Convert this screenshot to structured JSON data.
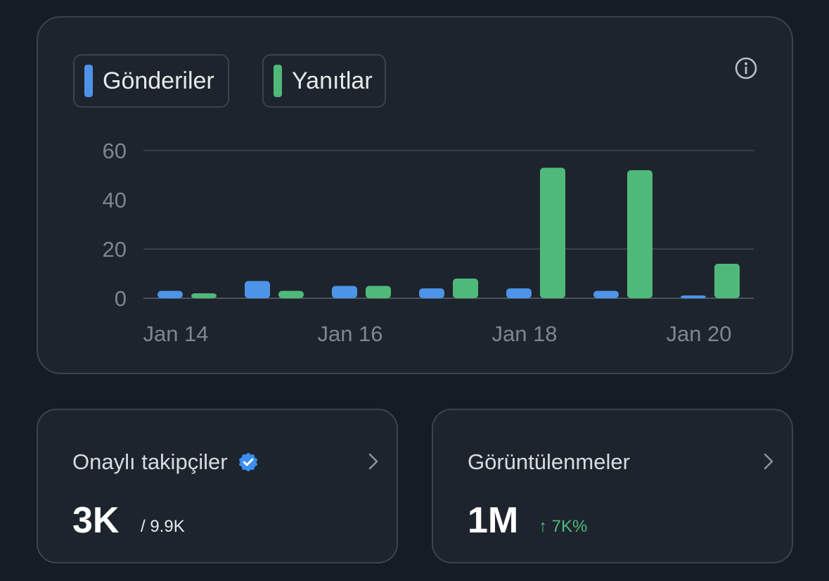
{
  "legend": {
    "posts": {
      "label": "Gönderiler",
      "color": "#4d94e8"
    },
    "replies": {
      "label": "Yanıtlar",
      "color": "#4fb97a"
    }
  },
  "info_icon": "info-icon",
  "chart_data": {
    "type": "bar",
    "categories": [
      "Jan 14",
      "Jan 15",
      "Jan 16",
      "Jan 17",
      "Jan 18",
      "Jan 19",
      "Jan 20"
    ],
    "x_tick_labels": [
      "Jan 14",
      "Jan 16",
      "Jan 18",
      "Jan 20"
    ],
    "series": [
      {
        "name": "Gönderiler",
        "color": "#4d94e8",
        "values": [
          3,
          7,
          5,
          4,
          4,
          3,
          1
        ]
      },
      {
        "name": "Yanıtlar",
        "color": "#4fb97a",
        "values": [
          2,
          3,
          5,
          8,
          53,
          52,
          14
        ]
      }
    ],
    "y_ticks": [
      0,
      20,
      40,
      60
    ],
    "ylim": [
      0,
      60
    ],
    "grid": true
  },
  "followers": {
    "title": "Onaylı takipçiler",
    "value": "3K",
    "total": "/ 9.9K"
  },
  "views": {
    "title": "Görüntülenmeler",
    "value": "1M",
    "change": "↑ 7K%"
  }
}
